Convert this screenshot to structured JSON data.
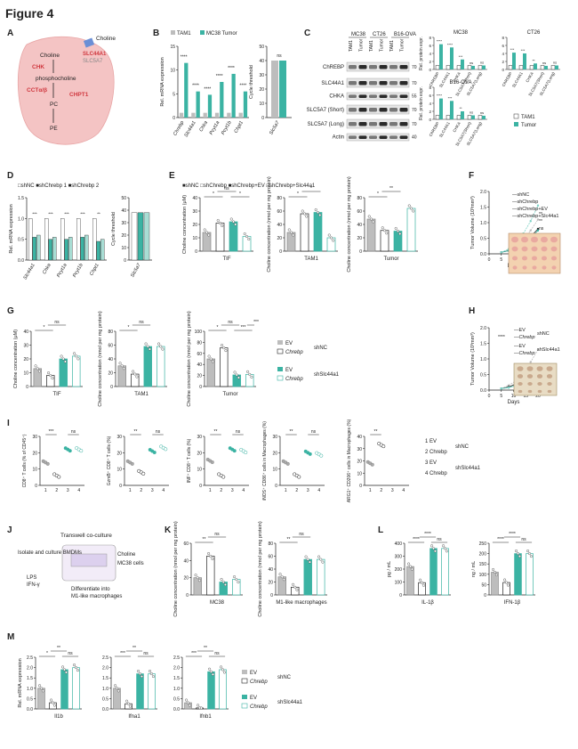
{
  "figure_title": "Figure 4",
  "colors": {
    "teal": "#3bb3a3",
    "gray": "#bdbdbd",
    "dark": "#333333",
    "cell": "#f4c4c4",
    "red": "#d0383f"
  },
  "panels": {
    "A": {
      "letter": "A",
      "labels": {
        "choline_out": "Choline",
        "choline_in": "Choline",
        "slc44a1": "SLC44A1",
        "slc5a7": "SLC5A7",
        "chk": "CHK",
        "phosphocholine": "phosphocholine",
        "cct": "CCTα/β",
        "chpt1": "CHPT1",
        "pc": "PC",
        "pe": "PE"
      }
    },
    "B": {
      "letter": "B",
      "legend": [
        "TAM1",
        "MC38 Tumor"
      ],
      "ylabel": "Rel. mRNA expression",
      "ylabel2": "Cycle threshold",
      "genes": [
        "Chrebp",
        "Slc44a1",
        "Chka",
        "Pcyt1a",
        "Pcyt1b",
        "Chpt1"
      ],
      "tam1": [
        1,
        1,
        1,
        1,
        1,
        1
      ],
      "tumor": [
        11.5,
        5.5,
        4.8,
        7.5,
        9.2,
        5.5
      ],
      "sig": [
        "****",
        "****",
        "****",
        "****",
        "****",
        "****"
      ],
      "yticks": [
        "0",
        "5",
        "10",
        "15"
      ],
      "ct_gene": "Slc5a7",
      "ct_values": [
        40,
        40
      ],
      "ct_sig": "ns",
      "ct_yticks": [
        "0",
        "10",
        "20",
        "30",
        "40",
        "50"
      ]
    },
    "C": {
      "letter": "C",
      "groups": [
        "MC38",
        "CT26",
        "B16-OVA"
      ],
      "lanes": [
        "TAM1",
        "Tumor",
        "TAM1",
        "Tumor",
        "TAM1",
        "Tumor"
      ],
      "bands": [
        "ChREBP",
        "SLC44A1",
        "CHKA",
        "SLC5A7",
        "(Short)",
        "SLC5A7",
        "(Long)",
        "Actin"
      ],
      "mw": [
        "70",
        "70",
        "55",
        "70",
        "70",
        "40"
      ],
      "charts": [
        {
          "title": "MC38",
          "tam1": [
            1,
            1,
            1,
            1,
            1
          ],
          "tumor": [
            6.3,
            5.5,
            2.5,
            0.9,
            1.0
          ],
          "sig": [
            "****",
            "****",
            "***",
            "ns",
            "ns"
          ]
        },
        {
          "title": "CT26",
          "tam1": [
            1,
            1,
            1,
            1,
            1
          ],
          "tumor": [
            4.2,
            4.0,
            1.5,
            0.9,
            1.0
          ],
          "sig": [
            "***",
            "***",
            "**",
            "ns",
            "ns"
          ]
        },
        {
          "title": "B16-OVA",
          "tam1": [
            1,
            1,
            1,
            1,
            1
          ],
          "tumor": [
            5.2,
            4.6,
            2.0,
            1.0,
            0.9
          ],
          "sig": [
            "****",
            "***",
            "**",
            "ns",
            "ns"
          ]
        }
      ],
      "ylabel": "Rel. protein expr.",
      "xlabels": [
        "ChREBP",
        "SLC44A1",
        "CHKA",
        "SLC5A7(Short)",
        "SLC5A7(Long)"
      ],
      "legend": [
        "TAM1",
        "Tumor"
      ]
    },
    "D": {
      "letter": "D",
      "legend": [
        "shNC",
        "shChrebp 1",
        "shChrebp 2"
      ],
      "ylabel": "Rel. mRNA expression",
      "genes": [
        "Slc44a1",
        "Chka",
        "Pcyt1a",
        "Pcyt1b",
        "Chpt1"
      ],
      "shnc": [
        1,
        1,
        1,
        1,
        1
      ],
      "sh1": [
        0.55,
        0.5,
        0.5,
        0.55,
        0.45
      ],
      "sh2": [
        0.6,
        0.55,
        0.55,
        0.6,
        0.5
      ],
      "sig": [
        "***",
        "***",
        "***",
        "***",
        "**"
      ],
      "yticks": [
        "0.0",
        "0.5",
        "1.0",
        "1.5"
      ],
      "ct_gene": "Slc5a7",
      "ct_values": [
        38,
        38,
        38
      ],
      "ct_yticks": [
        "0",
        "10",
        "20",
        "30",
        "40",
        "50"
      ],
      "ylabel2": "Cycle threshold"
    },
    "E": {
      "letter": "E",
      "legend": [
        "shNC",
        "shChrebp",
        "shChrebp+EV",
        "shChrebp+Slc44a1"
      ],
      "charts": [
        {
          "xlabel": "TIF",
          "ylabel": "Choline concentration (μM)",
          "values": [
            14,
            21,
            22,
            11
          ],
          "yticks": [
            "0",
            "10",
            "20",
            "30",
            "40"
          ],
          "sig": [
            "*",
            "ns",
            "*"
          ]
        },
        {
          "xlabel": "TAM1",
          "ylabel": "Choline concentration (nmol per mg protein)",
          "values": [
            28,
            56,
            58,
            20
          ],
          "yticks": [
            "0",
            "20",
            "40",
            "60",
            "80"
          ],
          "sig": [
            "*",
            "*"
          ]
        },
        {
          "xlabel": "Tumor",
          "ylabel": "Choline concentration (nmol per mg protein)",
          "values": [
            48,
            31,
            30,
            64
          ],
          "yticks": [
            "0",
            "20",
            "40",
            "60",
            "80"
          ],
          "sig": [
            "*",
            "**"
          ]
        }
      ]
    },
    "F": {
      "letter": "F",
      "ylabel": "Tumor Volume (10³mm³)",
      "xlabel": "Days",
      "xticks": [
        "0",
        "5",
        "10",
        "15",
        "20"
      ],
      "yticks": [
        "0.0",
        "0.5",
        "1.0",
        "1.5",
        "2.0"
      ],
      "legend": [
        "shNC",
        "shChrebp",
        "shChrebp+EV",
        "shChrebp+Slc44a1"
      ],
      "series": [
        {
          "name": "shNC",
          "x": [
            5,
            8,
            11,
            14,
            17,
            20
          ],
          "y": [
            0.05,
            0.12,
            0.25,
            0.45,
            0.75,
            1.1
          ]
        },
        {
          "name": "shChrebp",
          "x": [
            5,
            8,
            11,
            14,
            17,
            20
          ],
          "y": [
            0.05,
            0.1,
            0.2,
            0.35,
            0.55,
            0.8
          ]
        },
        {
          "name": "shChrebp+EV",
          "x": [
            5,
            8,
            11,
            14,
            17,
            20
          ],
          "y": [
            0.05,
            0.1,
            0.18,
            0.32,
            0.5,
            0.75
          ]
        },
        {
          "name": "shChrebp+Slc44a1",
          "x": [
            5,
            8,
            11,
            14,
            17,
            20
          ],
          "y": [
            0.05,
            0.15,
            0.35,
            0.65,
            1.05,
            1.55
          ]
        }
      ],
      "sig": [
        "**",
        "**",
        "ns"
      ]
    },
    "G": {
      "letter": "G",
      "legend_top": [
        "EV",
        "Chrebp"
      ],
      "legend_top_group": "shNC",
      "legend_bottom": [
        "EV",
        "Chrebp"
      ],
      "legend_bottom_group": "shSlc44a1",
      "charts": [
        {
          "xlabel": "TIF",
          "ylabel": "Choline concentration (μM)",
          "values": [
            13,
            8,
            20,
            22
          ],
          "yticks": [
            "0",
            "10",
            "20",
            "30",
            "40"
          ],
          "sig": [
            "*",
            "ns"
          ]
        },
        {
          "xlabel": "TAM1",
          "ylabel": "Choline concentration (nmol per mg protein)",
          "values": [
            30,
            18,
            58,
            58
          ],
          "yticks": [
            "0",
            "20",
            "40",
            "60",
            "80"
          ],
          "sig": [
            "*",
            "ns"
          ]
        },
        {
          "xlabel": "Tumor",
          "ylabel": "Choline concentration (nmol per mg protein)",
          "values": [
            50,
            70,
            21,
            22
          ],
          "yticks": [
            "0",
            "20",
            "40",
            "60",
            "80",
            "100"
          ],
          "sig": [
            "*",
            "ns",
            "***",
            "***"
          ]
        }
      ]
    },
    "H": {
      "letter": "H",
      "ylabel": "Tumor Volume (10³mm³)",
      "xlabel": "Days",
      "xticks": [
        "0",
        "5",
        "10",
        "15",
        "20"
      ],
      "yticks": [
        "0.0",
        "0.5",
        "1.0",
        "1.5",
        "2.0"
      ],
      "legend": [
        "EV",
        "Chrebp",
        "EV",
        "Chrebp"
      ],
      "legend_groups": [
        "shNC",
        "shSlc44a1"
      ],
      "series": [
        {
          "name": "EV",
          "x": [
            5,
            8,
            11,
            14,
            17,
            20
          ],
          "y": [
            0.05,
            0.15,
            0.3,
            0.55,
            0.9,
            1.3
          ]
        },
        {
          "name": "Chrebp",
          "x": [
            5,
            8,
            11,
            14,
            17,
            20
          ],
          "y": [
            0.05,
            0.1,
            0.2,
            0.35,
            0.5,
            0.7
          ]
        },
        {
          "name": "EV",
          "x": [
            5,
            8,
            11,
            14,
            17,
            20
          ],
          "y": [
            0.05,
            0.08,
            0.15,
            0.22,
            0.3,
            0.4
          ]
        },
        {
          "name": "Chrebp",
          "x": [
            5,
            8,
            11,
            14,
            17,
            20
          ],
          "y": [
            0.05,
            0.08,
            0.14,
            0.2,
            0.28,
            0.38
          ]
        }
      ],
      "sig": [
        "****",
        "ns"
      ]
    },
    "I": {
      "letter": "I",
      "charts": [
        {
          "ylabel": "CD8⁺ T cells (% of CD45⁺)",
          "yticks": [
            "0",
            "10",
            "20",
            "30"
          ],
          "values": [
            14,
            6,
            22,
            22
          ],
          "sig": [
            "***",
            "ns"
          ]
        },
        {
          "ylabel": "GzmB⁺ CD8⁺ T cells (%)",
          "yticks": [
            "0",
            "10",
            "20",
            "30"
          ],
          "values": [
            14,
            8,
            21,
            23
          ],
          "sig": [
            "**",
            "ns"
          ]
        },
        {
          "ylabel": "INF⁺ CD8⁺ T cells (%)",
          "yticks": [
            "0",
            "10",
            "20",
            "30"
          ],
          "values": [
            15,
            6,
            22,
            21
          ],
          "sig": [
            "**",
            "ns"
          ]
        },
        {
          "ylabel": "iNOS⁺ CD86⁺ cells in Macrophages (%)",
          "yticks": [
            "0",
            "10",
            "20",
            "30"
          ],
          "values": [
            14,
            6,
            20,
            19
          ],
          "sig": [
            "**",
            "ns"
          ]
        },
        {
          "ylabel": "ARG1⁺ CD206⁺ cells in Macrophages (%)",
          "yticks": [
            "0",
            "10",
            "20",
            "30",
            "40"
          ],
          "values": [
            18,
            33,
            0,
            0
          ],
          "sig": [
            "**"
          ]
        }
      ],
      "xticks": [
        "1",
        "2",
        "3",
        "4"
      ],
      "legend": [
        "1 EV",
        "2 Chrebp",
        "3 EV",
        "4 Chrebp"
      ],
      "legend_groups": [
        "shNC",
        "shSlc44a1"
      ]
    },
    "J": {
      "letter": "J",
      "title": "Transwell co-culture",
      "labels": [
        "Isolate and culture BMDMs",
        "Choline",
        "MC38 cells",
        "LPS",
        "IFN-γ",
        "Differentiate into",
        "M1-like macrophages"
      ]
    },
    "K": {
      "letter": "K",
      "charts": [
        {
          "xlabel": "MC38",
          "ylabel": "Choline concentration (nmol per mg protein)",
          "values": [
            20,
            45,
            15,
            18
          ],
          "yticks": [
            "0",
            "20",
            "40",
            "60"
          ],
          "sig": [
            "**",
            "ns"
          ]
        },
        {
          "xlabel": "M1-like macrophages",
          "ylabel": "Choline concentration (nmol per mg protein)",
          "values": [
            28,
            12,
            55,
            55
          ],
          "yticks": [
            "0",
            "20",
            "40",
            "60",
            "80"
          ],
          "sig": [
            "**",
            "ns"
          ]
        }
      ]
    },
    "L": {
      "letter": "L",
      "charts": [
        {
          "xlabel": "IL-1β",
          "ylabel": "pg / mL",
          "values": [
            220,
            95,
            360,
            360
          ],
          "yticks": [
            "0",
            "100",
            "200",
            "300",
            "400"
          ],
          "sig": [
            "****",
            "****",
            "ns"
          ]
        },
        {
          "xlabel": "IFN-1β",
          "ylabel": "ng / mL",
          "values": [
            110,
            60,
            200,
            200
          ],
          "yticks": [
            "0",
            "50",
            "100",
            "150",
            "200",
            "250"
          ],
          "sig": [
            "****",
            "****",
            "ns"
          ]
        }
      ]
    },
    "M": {
      "letter": "M",
      "ylabel": "Rel. mRNA expression",
      "charts": [
        {
          "xlabel": "Il1b",
          "values": [
            1.0,
            0.3,
            1.9,
            2.0
          ],
          "yticks": [
            "0.0",
            "0.5",
            "1.0",
            "1.5",
            "2.0",
            "2.5"
          ],
          "sig": [
            "*",
            "**",
            "ns"
          ]
        },
        {
          "xlabel": "Ifna1",
          "values": [
            1.0,
            0.25,
            1.7,
            1.7
          ],
          "yticks": [
            "0.0",
            "0.5",
            "1.0",
            "1.5",
            "2.0",
            "2.5"
          ],
          "sig": [
            "***",
            "**",
            "ns"
          ]
        },
        {
          "xlabel": "Ifnb1",
          "values": [
            0.3,
            0.05,
            1.8,
            1.9
          ],
          "yticks": [
            "0.0",
            "0.5",
            "1.0",
            "1.5",
            "2.0",
            "2.5"
          ],
          "sig": [
            "***",
            "**",
            "ns"
          ]
        }
      ],
      "legend_top": [
        "EV",
        "Chrebp"
      ],
      "legend_top_group": "shNC",
      "legend_bottom": [
        "EV",
        "Chrebp"
      ],
      "legend_bottom_group": "shSlc44a1"
    }
  }
}
